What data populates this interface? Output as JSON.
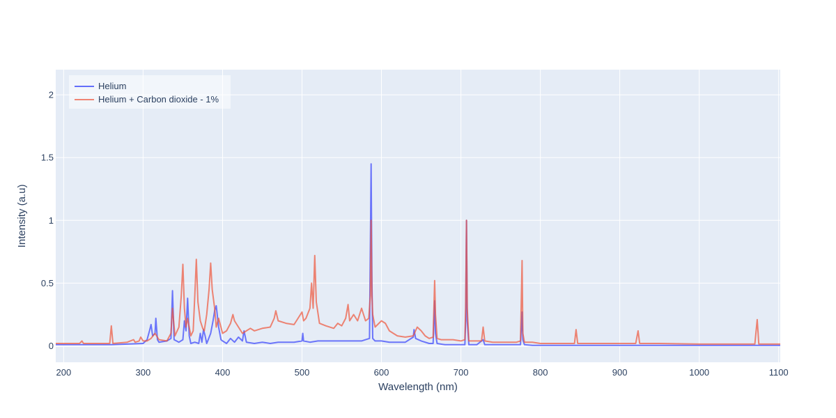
{
  "chart_data": {
    "type": "line",
    "title": "",
    "xlabel": "Wavelength (nm)",
    "ylabel": "Intensity (a.u)",
    "xlim": [
      190,
      1102
    ],
    "ylim": [
      -0.13,
      2.2
    ],
    "x_ticks": [
      200,
      300,
      400,
      500,
      600,
      700,
      800,
      900,
      1000,
      1100
    ],
    "x_tick_labels": [
      "200",
      "300",
      "400",
      "500",
      "600",
      "700",
      "800",
      "900",
      "1000",
      "1100"
    ],
    "y_ticks": [
      0,
      0.5,
      1,
      1.5,
      2
    ],
    "y_tick_labels": [
      "0",
      "0.5",
      "1",
      "1.5",
      "2"
    ],
    "grid": true,
    "legend_position": "top-left",
    "series": [
      {
        "name": "Helium",
        "color": "#636efa",
        "x": [
          190,
          220,
          260,
          280,
          300,
          305,
          308,
          310,
          312,
          315,
          316,
          318,
          320,
          330,
          335,
          337,
          339,
          345,
          350,
          352,
          354,
          356,
          358,
          360,
          365,
          370,
          372,
          374,
          376,
          378,
          380,
          382,
          385,
          388,
          390,
          392,
          395,
          398,
          400,
          405,
          410,
          415,
          420,
          425,
          427,
          430,
          440,
          450,
          460,
          470,
          480,
          490,
          500,
          501,
          502,
          510,
          520,
          540,
          560,
          575,
          580,
          585,
          587,
          588,
          589,
          592,
          600,
          610,
          620,
          630,
          640,
          641,
          643,
          650,
          660,
          665,
          667,
          668,
          670,
          680,
          690,
          700,
          705,
          706,
          707,
          708,
          710,
          720,
          728,
          730,
          740,
          760,
          775,
          777,
          778,
          780,
          790,
          800,
          850,
          900,
          950,
          1000,
          1050,
          1080,
          1102
        ],
        "y": [
          0.01,
          0.01,
          0.01,
          0.015,
          0.02,
          0.05,
          0.12,
          0.17,
          0.08,
          0.1,
          0.22,
          0.05,
          0.03,
          0.04,
          0.06,
          0.44,
          0.05,
          0.03,
          0.05,
          0.2,
          0.12,
          0.38,
          0.08,
          0.02,
          0.03,
          0.02,
          0.1,
          0.03,
          0.13,
          0.08,
          0.02,
          0.05,
          0.1,
          0.2,
          0.28,
          0.32,
          0.15,
          0.05,
          0.04,
          0.02,
          0.06,
          0.03,
          0.07,
          0.04,
          0.12,
          0.03,
          0.02,
          0.03,
          0.02,
          0.03,
          0.03,
          0.03,
          0.04,
          0.1,
          0.04,
          0.03,
          0.04,
          0.04,
          0.04,
          0.04,
          0.05,
          0.06,
          1.45,
          0.5,
          0.06,
          0.04,
          0.04,
          0.03,
          0.03,
          0.03,
          0.07,
          0.13,
          0.06,
          0.04,
          0.02,
          0.02,
          0.36,
          0.1,
          0.02,
          0.01,
          0.01,
          0.01,
          0.01,
          0.2,
          1.0,
          0.2,
          0.01,
          0.01,
          0.05,
          0.01,
          0.01,
          0.01,
          0.01,
          0.27,
          0.05,
          0.01,
          0.005,
          0.005,
          0.005,
          0.005,
          0.005,
          0.005,
          0.005,
          0.005,
          0.005
        ]
      },
      {
        "name": "Helium + Carbon dioxide - 1%",
        "color": "#ef553b",
        "x": [
          190,
          220,
          223,
          225,
          240,
          258,
          260,
          262,
          280,
          288,
          290,
          295,
          297,
          300,
          305,
          310,
          315,
          320,
          330,
          335,
          337,
          340,
          345,
          348,
          350,
          352,
          354,
          356,
          358,
          360,
          363,
          365,
          367,
          369,
          372,
          375,
          377,
          380,
          383,
          385,
          387,
          390,
          392,
          395,
          400,
          405,
          410,
          413,
          415,
          420,
          425,
          430,
          435,
          440,
          450,
          460,
          465,
          467,
          470,
          480,
          490,
          500,
          502,
          505,
          510,
          512,
          514,
          516,
          518,
          522,
          530,
          540,
          545,
          550,
          555,
          558,
          560,
          565,
          570,
          575,
          580,
          584,
          586,
          587,
          588,
          589,
          592,
          600,
          605,
          610,
          615,
          620,
          630,
          640,
          645,
          650,
          655,
          660,
          665,
          667,
          668,
          670,
          675,
          680,
          690,
          700,
          705,
          706,
          707,
          708,
          710,
          720,
          726,
          728,
          730,
          740,
          750,
          760,
          770,
          775,
          777,
          778,
          780,
          790,
          800,
          820,
          843,
          845,
          847,
          870,
          900,
          920,
          923,
          925,
          927,
          950,
          1000,
          1050,
          1070,
          1073,
          1075,
          1102
        ],
        "y": [
          0.02,
          0.02,
          0.04,
          0.02,
          0.02,
          0.02,
          0.16,
          0.02,
          0.03,
          0.05,
          0.03,
          0.04,
          0.07,
          0.04,
          0.04,
          0.06,
          0.1,
          0.05,
          0.04,
          0.1,
          0.3,
          0.08,
          0.15,
          0.4,
          0.65,
          0.3,
          0.15,
          0.22,
          0.15,
          0.08,
          0.12,
          0.4,
          0.69,
          0.35,
          0.2,
          0.14,
          0.12,
          0.25,
          0.45,
          0.66,
          0.45,
          0.3,
          0.15,
          0.22,
          0.1,
          0.12,
          0.18,
          0.25,
          0.2,
          0.15,
          0.1,
          0.12,
          0.14,
          0.12,
          0.14,
          0.15,
          0.22,
          0.28,
          0.2,
          0.18,
          0.17,
          0.27,
          0.2,
          0.22,
          0.3,
          0.5,
          0.3,
          0.72,
          0.35,
          0.18,
          0.16,
          0.14,
          0.18,
          0.16,
          0.22,
          0.33,
          0.2,
          0.25,
          0.2,
          0.3,
          0.2,
          0.22,
          0.4,
          1.0,
          0.4,
          0.25,
          0.15,
          0.2,
          0.18,
          0.12,
          0.1,
          0.08,
          0.07,
          0.08,
          0.15,
          0.12,
          0.08,
          0.06,
          0.07,
          0.52,
          0.25,
          0.06,
          0.05,
          0.05,
          0.05,
          0.04,
          0.05,
          0.3,
          1.0,
          0.3,
          0.04,
          0.04,
          0.04,
          0.15,
          0.04,
          0.03,
          0.03,
          0.03,
          0.03,
          0.04,
          0.68,
          0.1,
          0.03,
          0.03,
          0.02,
          0.02,
          0.02,
          0.13,
          0.02,
          0.02,
          0.02,
          0.02,
          0.12,
          0.02,
          0.02,
          0.02,
          0.015,
          0.015,
          0.015,
          0.21,
          0.015,
          0.015
        ]
      }
    ]
  }
}
